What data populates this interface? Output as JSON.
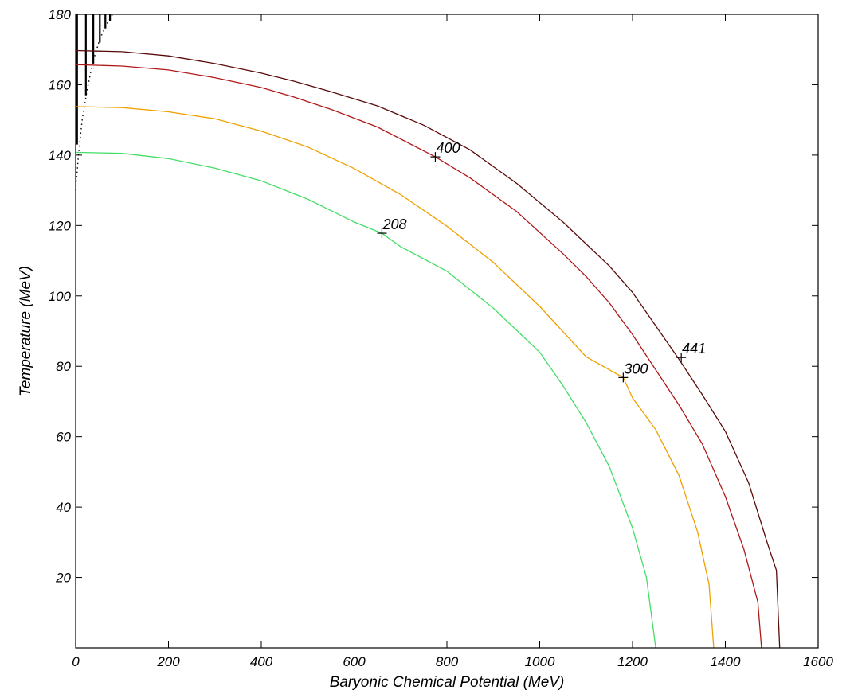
{
  "chart_data": {
    "type": "line",
    "title": "",
    "xlabel": "Baryonic Chemical Potential (MeV)",
    "ylabel": "Temperature (MeV)",
    "xlim": [
      0,
      1600
    ],
    "ylim": [
      0,
      180
    ],
    "xticks": [
      0,
      200,
      400,
      600,
      800,
      1000,
      1200,
      1400,
      1600
    ],
    "yticks": [
      20,
      40,
      60,
      80,
      100,
      120,
      140,
      160,
      180
    ],
    "grid": false,
    "legend": "none",
    "series": [
      {
        "color": "#5a0a0a",
        "points": [
          [
            0,
            169.7
          ],
          [
            100,
            169.4
          ],
          [
            200,
            168.2
          ],
          [
            300,
            166
          ],
          [
            400,
            163.3
          ],
          [
            470,
            161
          ],
          [
            550,
            158
          ],
          [
            650,
            154
          ],
          [
            750,
            148.5
          ],
          [
            850,
            141.5
          ],
          [
            950,
            132
          ],
          [
            1050,
            121
          ],
          [
            1150,
            108.5
          ],
          [
            1200,
            101
          ],
          [
            1250,
            91.5
          ],
          [
            1300,
            82
          ],
          [
            1350,
            72
          ],
          [
            1400,
            61.5
          ],
          [
            1450,
            47
          ],
          [
            1490,
            30
          ],
          [
            1510,
            22
          ],
          [
            1517,
            0
          ]
        ]
      },
      {
        "color": "#b01818",
        "points": [
          [
            0,
            165.7
          ],
          [
            100,
            165.3
          ],
          [
            200,
            164.2
          ],
          [
            300,
            162
          ],
          [
            400,
            159.2
          ],
          [
            470,
            156.5
          ],
          [
            550,
            153
          ],
          [
            650,
            148
          ],
          [
            775,
            139.5
          ],
          [
            850,
            133.5
          ],
          [
            950,
            124
          ],
          [
            1050,
            112
          ],
          [
            1100,
            105.5
          ],
          [
            1150,
            98
          ],
          [
            1200,
            89
          ],
          [
            1250,
            79
          ],
          [
            1300,
            69
          ],
          [
            1350,
            58
          ],
          [
            1400,
            43
          ],
          [
            1440,
            28
          ],
          [
            1470,
            13
          ],
          [
            1478,
            0
          ]
        ]
      },
      {
        "color": "#f0a000",
        "points": [
          [
            0,
            153.8
          ],
          [
            100,
            153.5
          ],
          [
            200,
            152.3
          ],
          [
            300,
            150.3
          ],
          [
            400,
            146.8
          ],
          [
            500,
            142.3
          ],
          [
            600,
            136.2
          ],
          [
            700,
            128.8
          ],
          [
            800,
            119.8
          ],
          [
            900,
            109.5
          ],
          [
            1000,
            97
          ],
          [
            1100,
            82.7
          ],
          [
            1180,
            76.8
          ],
          [
            1200,
            71
          ],
          [
            1250,
            62
          ],
          [
            1300,
            49
          ],
          [
            1340,
            33
          ],
          [
            1365,
            18
          ],
          [
            1375,
            0
          ]
        ]
      },
      {
        "color": "#44dd66",
        "points": [
          [
            0,
            140.8
          ],
          [
            100,
            140.5
          ],
          [
            200,
            139
          ],
          [
            300,
            136.3
          ],
          [
            400,
            132.7
          ],
          [
            500,
            127.5
          ],
          [
            600,
            121
          ],
          [
            660,
            117.8
          ],
          [
            700,
            114
          ],
          [
            800,
            107
          ],
          [
            900,
            96.5
          ],
          [
            1000,
            84
          ],
          [
            1050,
            74.5
          ],
          [
            1100,
            64
          ],
          [
            1150,
            51.5
          ],
          [
            1200,
            34
          ],
          [
            1230,
            20
          ],
          [
            1250,
            0
          ]
        ]
      }
    ],
    "markers": [
      {
        "label": "400",
        "x": 775,
        "y": 139.5
      },
      {
        "label": "208",
        "x": 660,
        "y": 117.8
      },
      {
        "label": "300",
        "x": 1180,
        "y": 76.8
      },
      {
        "label": "441",
        "x": 1305,
        "y": 82.5
      }
    ],
    "corner_lines": {
      "color": "#000000",
      "segments": [
        [
          3,
          180,
          143
        ],
        [
          22,
          180,
          157
        ],
        [
          38,
          180,
          166
        ],
        [
          52,
          180,
          172
        ],
        [
          64,
          180,
          176
        ],
        [
          74,
          180,
          178
        ]
      ],
      "dotted_edge": [
        [
          0,
          130
        ],
        [
          6,
          140
        ],
        [
          14,
          150
        ],
        [
          24,
          158
        ],
        [
          36,
          166
        ],
        [
          52,
          173
        ],
        [
          70,
          178
        ],
        [
          80,
          180
        ]
      ]
    }
  }
}
